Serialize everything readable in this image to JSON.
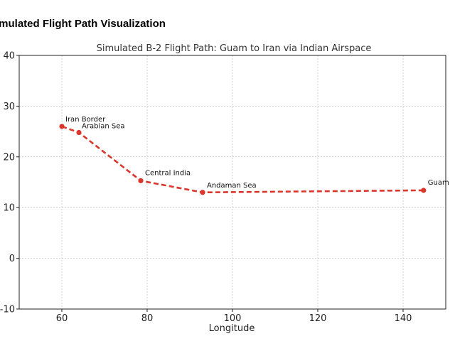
{
  "page": {
    "heading": "imulated Flight Path Visualization"
  },
  "chart_data": {
    "type": "line",
    "title": "Simulated B-2 Flight Path: Guam to Iran via Indian Airspace",
    "xlabel": "Longitude",
    "ylabel": "",
    "xlim": [
      50,
      150
    ],
    "ylim": [
      -10,
      40
    ],
    "xticks": [
      60,
      80,
      100,
      120,
      140
    ],
    "yticks": [
      -10,
      0,
      10,
      20,
      30,
      40
    ],
    "grid": true,
    "line_style": "dashed",
    "color": "#d9372b",
    "points": [
      {
        "label": "Guam",
        "x": 144.8,
        "y": 13.4
      },
      {
        "label": "Andaman Sea",
        "x": 93,
        "y": 13
      },
      {
        "label": "Central India",
        "x": 78.5,
        "y": 15.3
      },
      {
        "label": "Arabian Sea",
        "x": 64,
        "y": 24.8
      },
      {
        "label": "Iran Border",
        "x": 60,
        "y": 26
      }
    ]
  }
}
